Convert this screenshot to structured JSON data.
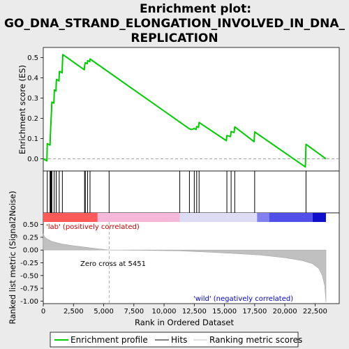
{
  "chart_data": {
    "type": "line",
    "title_lines": [
      "Enrichment plot:",
      "GO_DNA_STRAND_ELONGATION_INVOLVED_IN_DNA_",
      "REPLICATION"
    ],
    "top_panel": {
      "ylabel": "Enrichment score (ES)",
      "ylim": [
        -0.06,
        0.55
      ],
      "yticks": [
        "0.0",
        "0.1",
        "0.2",
        "0.3",
        "0.4",
        "0.5"
      ],
      "ytick_values": [
        0.0,
        0.1,
        0.2,
        0.3,
        0.4,
        0.5
      ],
      "series_color": "#00cc00",
      "es_points": [
        {
          "rank": 0,
          "es": 0.0
        },
        {
          "rank": 300,
          "es": -0.01
        },
        {
          "rank": 330,
          "es": 0.075
        },
        {
          "rank": 560,
          "es": 0.068
        },
        {
          "rank": 580,
          "es": 0.1
        },
        {
          "rank": 600,
          "es": 0.135
        },
        {
          "rank": 630,
          "es": 0.175
        },
        {
          "rank": 660,
          "es": 0.21
        },
        {
          "rank": 690,
          "es": 0.245
        },
        {
          "rank": 710,
          "es": 0.28
        },
        {
          "rank": 880,
          "es": 0.275
        },
        {
          "rank": 900,
          "es": 0.31
        },
        {
          "rank": 920,
          "es": 0.34
        },
        {
          "rank": 1050,
          "es": 0.335
        },
        {
          "rank": 1070,
          "es": 0.37
        },
        {
          "rank": 1090,
          "es": 0.392
        },
        {
          "rank": 1300,
          "es": 0.385
        },
        {
          "rank": 1320,
          "es": 0.41
        },
        {
          "rank": 1340,
          "es": 0.432
        },
        {
          "rank": 1560,
          "es": 0.425
        },
        {
          "rank": 1580,
          "es": 0.46
        },
        {
          "rank": 1600,
          "es": 0.49
        },
        {
          "rank": 1620,
          "es": 0.515
        },
        {
          "rank": 3400,
          "es": 0.44
        },
        {
          "rank": 3420,
          "es": 0.46
        },
        {
          "rank": 3480,
          "es": 0.475
        },
        {
          "rank": 3650,
          "es": 0.47
        },
        {
          "rank": 3670,
          "es": 0.485
        },
        {
          "rank": 3850,
          "es": 0.48
        },
        {
          "rank": 3870,
          "es": 0.493
        },
        {
          "rank": 12100,
          "es": 0.148
        },
        {
          "rank": 12300,
          "es": 0.145
        },
        {
          "rank": 12500,
          "es": 0.15
        },
        {
          "rank": 12650,
          "es": 0.145
        },
        {
          "rank": 12700,
          "es": 0.16
        },
        {
          "rank": 12850,
          "es": 0.155
        },
        {
          "rank": 12900,
          "es": 0.18
        },
        {
          "rank": 15150,
          "es": 0.09
        },
        {
          "rank": 15200,
          "es": 0.115
        },
        {
          "rank": 15500,
          "es": 0.11
        },
        {
          "rank": 15550,
          "es": 0.135
        },
        {
          "rank": 15800,
          "es": 0.13
        },
        {
          "rank": 15850,
          "es": 0.158
        },
        {
          "rank": 17450,
          "es": 0.085
        },
        {
          "rank": 17500,
          "es": 0.133
        },
        {
          "rank": 21700,
          "es": -0.04
        },
        {
          "rank": 21750,
          "es": 0.072
        },
        {
          "rank": 23400,
          "es": 0.0
        }
      ]
    },
    "hits_panel": {
      "hit_ranks": [
        330,
        560,
        600,
        640,
        680,
        710,
        900,
        1070,
        1320,
        1580,
        3420,
        3480,
        3670,
        3870,
        5451,
        11300,
        12100,
        12500,
        12700,
        12900,
        15200,
        15550,
        15850,
        17500,
        21750
      ]
    },
    "metric_panel": {
      "ylabel": "Ranked list metric (Signal2Noise)",
      "ylim": [
        -1.05,
        0.55
      ],
      "yticks": [
        "0.50",
        "0.25",
        "0.00",
        "-0.25",
        "-0.50",
        "-0.75",
        "-1.00"
      ],
      "ytick_values": [
        0.5,
        0.25,
        0.0,
        -0.25,
        -0.5,
        -0.75,
        -1.0
      ],
      "fill_color": "#c0c0c0",
      "metric_points": [
        {
          "rank": 0,
          "m": 0.32
        },
        {
          "rank": 100,
          "m": 0.26
        },
        {
          "rank": 300,
          "m": 0.22
        },
        {
          "rank": 700,
          "m": 0.17
        },
        {
          "rank": 1500,
          "m": 0.12
        },
        {
          "rank": 2500,
          "m": 0.085
        },
        {
          "rank": 3500,
          "m": 0.055
        },
        {
          "rank": 4500,
          "m": 0.025
        },
        {
          "rank": 5451,
          "m": 0.0
        },
        {
          "rank": 8000,
          "m": -0.005
        },
        {
          "rank": 11000,
          "m": -0.015
        },
        {
          "rank": 13500,
          "m": -0.04
        },
        {
          "rank": 16000,
          "m": -0.07
        },
        {
          "rank": 18000,
          "m": -0.1
        },
        {
          "rank": 20000,
          "m": -0.15
        },
        {
          "rank": 21500,
          "m": -0.21
        },
        {
          "rank": 22300,
          "m": -0.27
        },
        {
          "rank": 22800,
          "m": -0.36
        },
        {
          "rank": 23100,
          "m": -0.5
        },
        {
          "rank": 23300,
          "m": -0.7
        },
        {
          "rank": 23400,
          "m": -1.02
        }
      ],
      "zero_cross_label": "Zero cross at 5451",
      "zero_cross_rank": 5451,
      "pos_label": "'lab' (positively correlated)",
      "neg_label": "'wild' (negatively correlated)",
      "pos_label_color": "#cc0000",
      "neg_label_color": "#0000cc"
    },
    "xlabel": "Rank in Ordered Dataset",
    "xlim": [
      0,
      24500
    ],
    "xticks": [
      "0",
      "2,500",
      "5,000",
      "7,500",
      "10,000",
      "12,500",
      "15,000",
      "17,500",
      "20,000",
      "22,500"
    ],
    "xtick_values": [
      0,
      2500,
      5000,
      7500,
      10000,
      12500,
      15000,
      17500,
      20000,
      22500
    ],
    "color_bar": [
      {
        "from": 0,
        "to": 4500,
        "color": "#ff5a5a"
      },
      {
        "from": 4500,
        "to": 11300,
        "color": "#f5b8d8"
      },
      {
        "from": 11300,
        "to": 17700,
        "color": "#dcdcf5"
      },
      {
        "from": 17700,
        "to": 18700,
        "color": "#8080ee"
      },
      {
        "from": 18700,
        "to": 22300,
        "color": "#5050e8"
      },
      {
        "from": 22300,
        "to": 23400,
        "color": "#1010cc"
      }
    ],
    "legend": {
      "placement": "bottom",
      "items": [
        {
          "label": "Enrichment profile",
          "color": "#00cc00",
          "kind": "line"
        },
        {
          "label": "Hits",
          "color": "#000000",
          "kind": "line"
        },
        {
          "label": "Ranking metric scores",
          "color": "#c0c0c0",
          "kind": "line"
        }
      ]
    }
  }
}
